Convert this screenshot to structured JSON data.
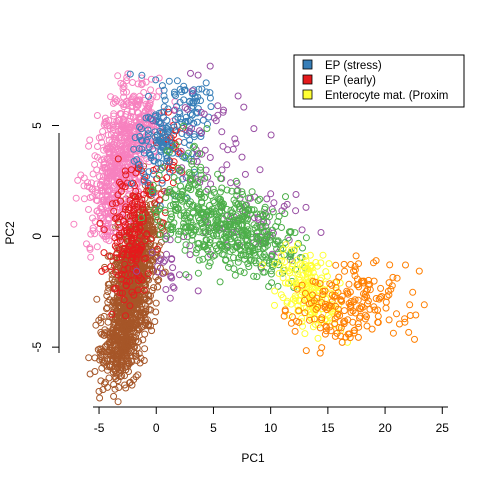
{
  "chart_data": {
    "type": "scatter",
    "title": "",
    "xlabel": "PC1",
    "ylabel": "PC2",
    "xlim": [
      -8.5,
      25.5
    ],
    "ylim": [
      -7.7,
      8.0
    ],
    "x_ticks": [
      -5,
      0,
      5,
      10,
      15,
      20,
      25
    ],
    "y_ticks": [
      -5,
      0,
      5
    ],
    "x_tick_labels": [
      "-5",
      "0",
      "5",
      "10",
      "15",
      "20",
      "25"
    ],
    "y_tick_labels": [
      "-5",
      "0",
      "5"
    ],
    "marker": "open-circle",
    "legend_position": "top-right",
    "legend": [
      {
        "label": "EP (stress)",
        "color": "#377EB8"
      },
      {
        "label": "EP (early)",
        "color": "#E41A1C"
      },
      {
        "label": "Enterocyte mat. (Proxim",
        "color": "#FFFF33"
      }
    ],
    "series": [
      {
        "color": "#A65628",
        "clusters": [
          {
            "n": 900,
            "cx": -2.2,
            "cy": -2.6,
            "sx": 1.1,
            "sy": 1.9,
            "rho": 0.55
          },
          {
            "n": 160,
            "cx": -3.2,
            "cy": -4.8,
            "sx": 1.0,
            "sy": 0.9,
            "rho": 0.3
          },
          {
            "n": 120,
            "cx": -1.5,
            "cy": -0.5,
            "sx": 0.9,
            "sy": 1.0,
            "rho": 0.4
          }
        ]
      },
      {
        "color": "#F781BF",
        "clusters": [
          {
            "n": 480,
            "cx": -3.0,
            "cy": 3.3,
            "sx": 1.3,
            "sy": 1.6,
            "rho": 0.4
          },
          {
            "n": 120,
            "cx": -1.5,
            "cy": 5.0,
            "sx": 1.2,
            "sy": 0.8,
            "rho": 0.2
          },
          {
            "n": 60,
            "cx": -4.7,
            "cy": 1.5,
            "sx": 0.8,
            "sy": 1.0,
            "rho": 0.0
          }
        ]
      },
      {
        "color": "#E41A1C",
        "clusters": [
          {
            "n": 140,
            "cx": -2.2,
            "cy": 1.0,
            "sx": 1.0,
            "sy": 1.3,
            "rho": 0.3
          },
          {
            "n": 60,
            "cx": -2.5,
            "cy": -1.5,
            "sx": 1.0,
            "sy": 1.2,
            "rho": 0.3
          },
          {
            "n": 40,
            "cx": 1.2,
            "cy": 3.8,
            "sx": 0.8,
            "sy": 0.8,
            "rho": 0.0
          }
        ]
      },
      {
        "color": "#377EB8",
        "clusters": [
          {
            "n": 150,
            "cx": 0.8,
            "cy": 4.4,
            "sx": 1.3,
            "sy": 1.1,
            "rho": 0.2
          },
          {
            "n": 50,
            "cx": 3.0,
            "cy": 5.8,
            "sx": 1.0,
            "sy": 0.9,
            "rho": 0.0
          }
        ]
      },
      {
        "color": "#984EA3",
        "clusters": [
          {
            "n": 60,
            "cx": 4.5,
            "cy": 4.0,
            "sx": 2.0,
            "sy": 1.8,
            "rho": -0.2
          },
          {
            "n": 60,
            "cx": 8.5,
            "cy": 0.5,
            "sx": 2.5,
            "sy": 1.2,
            "rho": -0.3
          },
          {
            "n": 30,
            "cx": 1.5,
            "cy": -1.0,
            "sx": 1.2,
            "sy": 0.8,
            "rho": 0.0
          }
        ]
      },
      {
        "color": "#4DAF4A",
        "clusters": [
          {
            "n": 380,
            "cx": 6.0,
            "cy": 0.4,
            "sx": 2.6,
            "sy": 0.95,
            "rho": -0.3
          },
          {
            "n": 80,
            "cx": 2.5,
            "cy": 2.0,
            "sx": 1.0,
            "sy": 1.2,
            "rho": 0.0
          },
          {
            "n": 60,
            "cx": 10.0,
            "cy": -0.5,
            "sx": 1.5,
            "sy": 0.8,
            "rho": -0.2
          }
        ]
      },
      {
        "color": "#FFFF33",
        "clusters": [
          {
            "n": 180,
            "cx": 13.4,
            "cy": -2.5,
            "sx": 1.4,
            "sy": 0.9,
            "rho": -0.4
          }
        ]
      },
      {
        "color": "#FF7F00",
        "clusters": [
          {
            "n": 170,
            "cx": 16.2,
            "cy": -3.3,
            "sx": 2.1,
            "sy": 1.0,
            "rho": 0.0
          },
          {
            "n": 20,
            "cx": 21.0,
            "cy": -2.8,
            "sx": 1.4,
            "sy": 0.9,
            "rho": 0.0
          }
        ]
      }
    ]
  }
}
